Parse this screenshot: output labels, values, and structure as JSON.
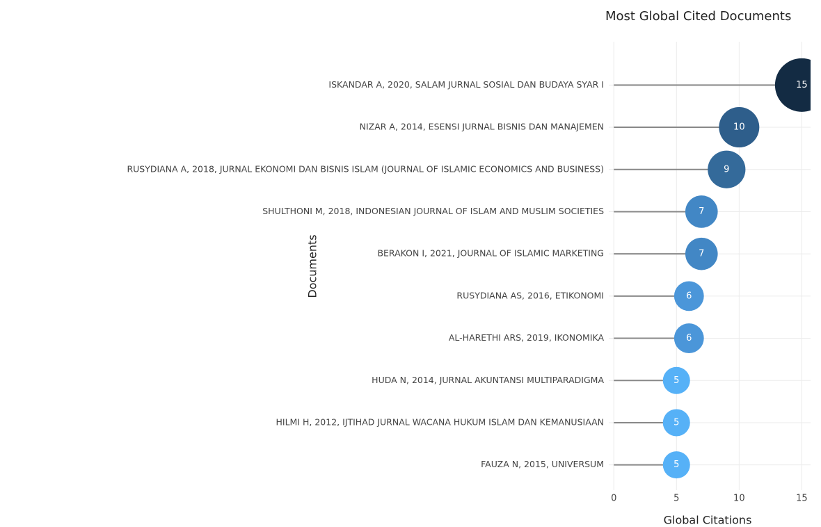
{
  "chart_data": {
    "type": "lollipop",
    "title": "Most Global Cited Documents",
    "x_label": "Global Citations",
    "y_label": "Documents",
    "categories": [
      "ISKANDAR A, 2020, SALAM JURNAL SOSIAL DAN BUDAYA SYAR I",
      "NIZAR A, 2014, ESENSI JURNAL BISNIS DAN MANAJEMEN",
      "RUSYDIANA A, 2018, JURNAL EKONOMI DAN BISNIS ISLAM (JOURNAL OF ISLAMIC ECONOMICS AND BUSINESS)",
      "SHULTHONI M, 2018, INDONESIAN JOURNAL OF ISLAM AND MUSLIM SOCIETIES",
      "BERAKON I, 2021, JOURNAL OF ISLAMIC MARKETING",
      "RUSYDIANA AS, 2016, ETIKONOMI",
      "AL-HARETHI ARS, 2019, IKONOMIKA",
      "HUDA N, 2014, JURNAL AKUNTANSI MULTIPARADIGMA",
      "HILMI H, 2012, IJTIHAD JURNAL WACANA HUKUM ISLAM DAN KEMANUSIAAN",
      "FAUZA N, 2015, UNIVERSUM"
    ],
    "values": [
      15,
      10,
      9,
      7,
      7,
      6,
      6,
      5,
      5,
      5
    ],
    "colors": [
      "#132b43",
      "#2e5e8b",
      "#346a9a",
      "#4287c5",
      "#4287c5",
      "#4b96d9",
      "#4b96d9",
      "#56b1f7",
      "#56b1f7",
      "#56b1f7"
    ],
    "stem_color": "#888888",
    "xlim": [
      -0.4,
      15.7
    ],
    "xticks": [
      0,
      5,
      10,
      15
    ],
    "grid": true
  }
}
